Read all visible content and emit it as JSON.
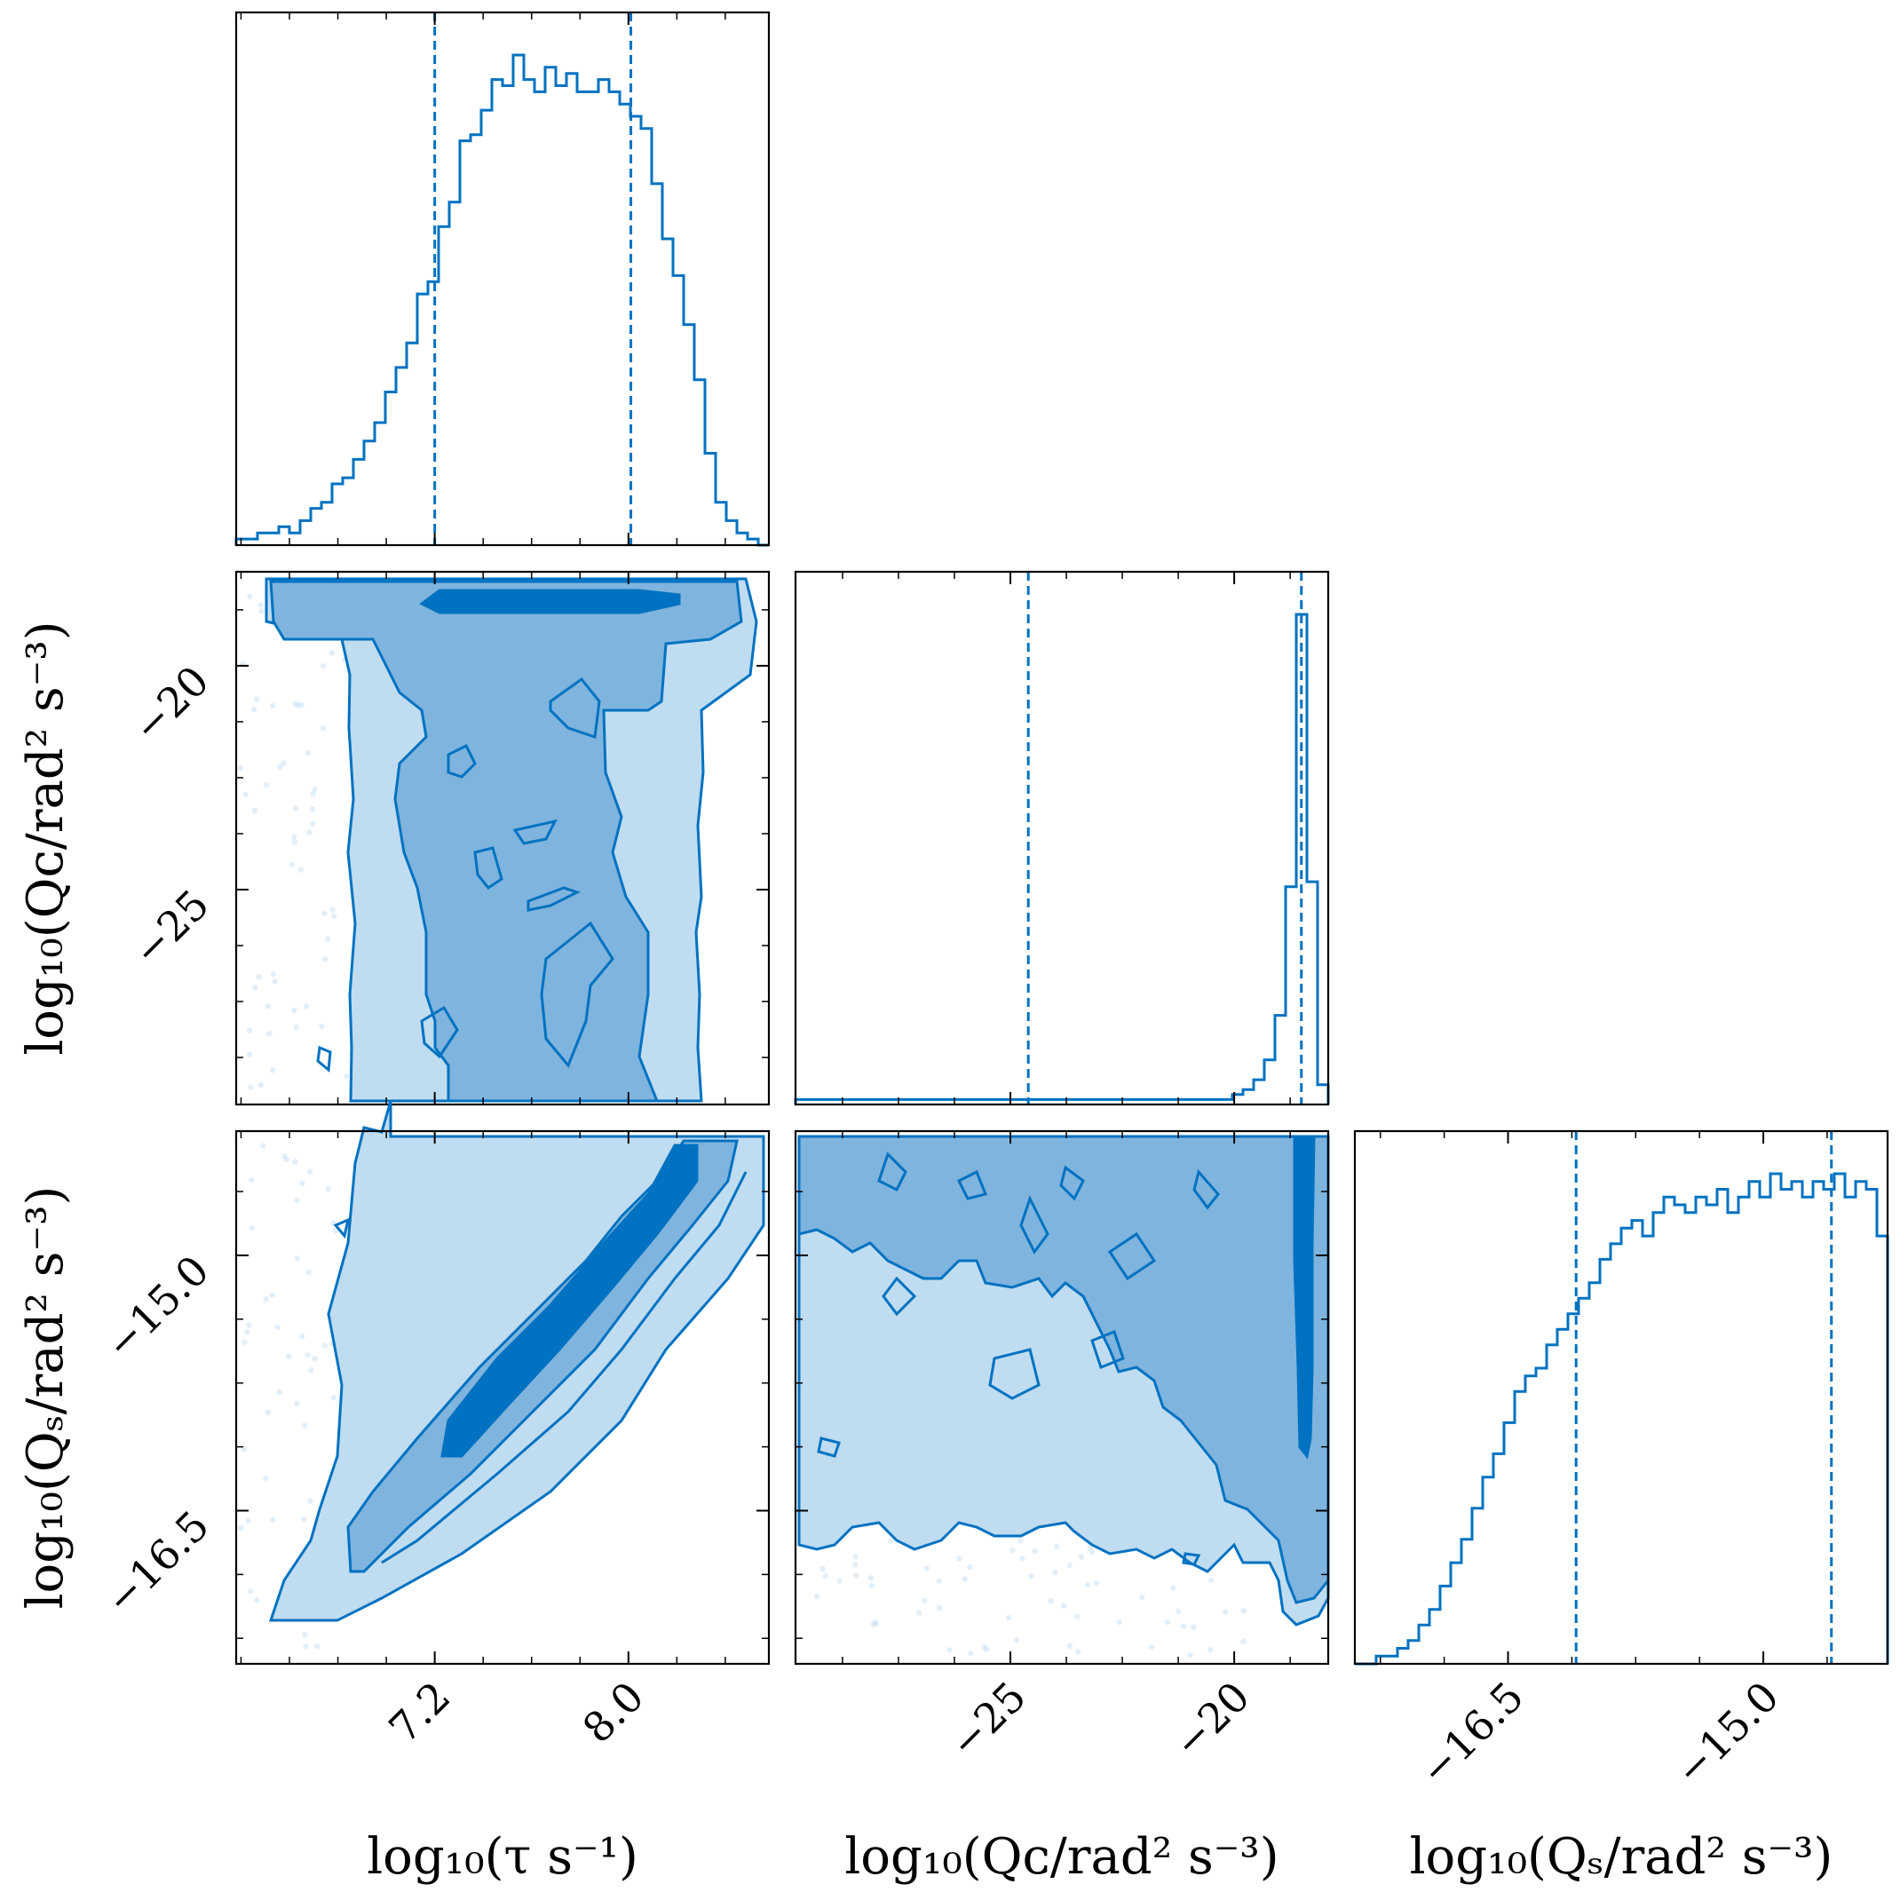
{
  "chart_data": {
    "type": "corner",
    "color": "#0072c1",
    "fill_colors": [
      "#c0dcf0",
      "#7fb4de",
      "#0072c1"
    ],
    "params": [
      {
        "name": "log_tau",
        "label": "log₁₀(τ s⁻¹)",
        "range": [
          6.38,
          8.58
        ],
        "ticks": [
          7.2,
          8.0
        ],
        "tick_labels": [
          "7.2",
          "8.0"
        ],
        "quantiles": [
          7.2,
          8.01
        ],
        "hist": {
          "bins": 50,
          "counts": [
            1,
            1,
            2,
            2,
            3,
            2,
            4,
            6,
            7,
            10,
            11,
            14,
            17,
            20,
            25,
            29,
            33,
            41,
            43,
            52,
            56,
            66,
            67,
            71,
            76,
            75,
            80,
            76,
            74,
            78,
            75,
            77,
            74,
            74,
            76,
            74,
            72,
            70,
            68,
            59,
            50,
            44,
            36,
            27,
            15,
            7,
            4,
            2,
            1,
            0
          ]
        }
      },
      {
        "name": "log_Qc",
        "label": "log₁₀(Qᴄ/rad² s⁻³)",
        "range": [
          -29.8,
          -17.9
        ],
        "ticks": [
          -25,
          -20
        ],
        "tick_labels": [
          "−25",
          "−20"
        ],
        "quantiles": [
          -24.6,
          -18.5
        ],
        "hist": {
          "bins": 50,
          "counts": [
            1,
            1,
            1,
            1,
            1,
            1,
            1,
            1,
            1,
            1,
            1,
            1,
            1,
            1,
            1,
            1,
            1,
            1,
            1,
            1,
            1,
            1,
            1,
            1,
            1,
            1,
            1,
            1,
            1,
            1,
            1,
            1,
            1,
            1,
            1,
            1,
            1,
            1,
            1,
            1,
            1,
            2,
            3,
            5,
            9,
            18,
            44,
            99,
            45,
            4
          ]
        }
      },
      {
        "name": "log_Qs",
        "label": "log₁₀(Qₛ/rad² s⁻³)",
        "range": [
          -17.4,
          -14.27
        ],
        "ticks": [
          -16.5,
          -15.0
        ],
        "tick_labels": [
          "−16.5",
          "−15.0"
        ],
        "quantiles": [
          -16.1,
          -14.6
        ],
        "hist": {
          "bins": 50,
          "counts": [
            0,
            0,
            1,
            1,
            2,
            3,
            5,
            7,
            10,
            13,
            16,
            20,
            24,
            27,
            31,
            35,
            37,
            38,
            41,
            43,
            45,
            47,
            49,
            52,
            54,
            56,
            57,
            55,
            58,
            60,
            59,
            58,
            60,
            59,
            61,
            58,
            60,
            62,
            60,
            63,
            61,
            62,
            60,
            62,
            61,
            63,
            60,
            62,
            61,
            55
          ]
        }
      }
    ],
    "panels": {
      "tau_Qc": {
        "title": "",
        "note": "flat band in log Qc across log tau 6.8-8.3, dense core near Qc=-19"
      },
      "tau_Qs": {
        "note": "strong positive correlation between log tau and log Qs"
      },
      "Qc_Qs": {
        "note": "Qs broadly constrained above -16.5 for all Qc; dense ridge at Qc=-18.6"
      }
    },
    "contour_levels_sigma": [
      1,
      2,
      3
    ]
  }
}
